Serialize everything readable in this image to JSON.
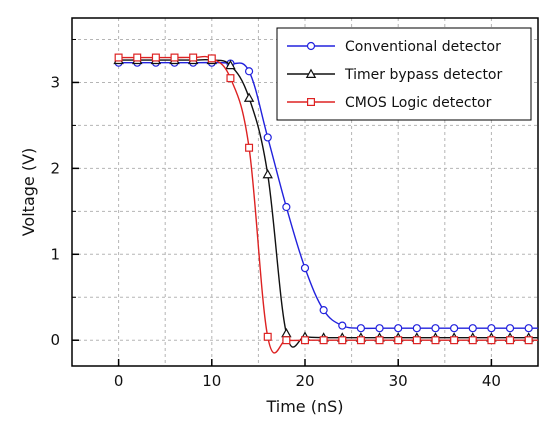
{
  "chart_data": {
    "type": "line",
    "xlabel": "Time (nS)",
    "ylabel": "Voltage (V)",
    "xlim": [
      -5,
      45
    ],
    "ylim": [
      -0.3,
      3.75
    ],
    "xticks": [
      0,
      10,
      20,
      30,
      40
    ],
    "yticks": [
      0,
      1,
      2,
      3
    ],
    "grid": true,
    "legend": "top-right",
    "series": [
      {
        "name": "Conventional detector",
        "color": "#2222dd",
        "marker": "circle",
        "x": [
          0,
          2,
          4,
          6,
          8,
          10,
          12,
          14,
          16,
          18,
          20,
          22,
          24,
          26,
          28,
          30,
          32,
          34,
          36,
          38,
          40,
          42,
          44,
          45
        ],
        "y": [
          3.23,
          3.23,
          3.23,
          3.23,
          3.23,
          3.23,
          3.22,
          3.13,
          2.36,
          1.55,
          0.84,
          0.35,
          0.17,
          0.14,
          0.14,
          0.14,
          0.14,
          0.14,
          0.14,
          0.14,
          0.14,
          0.14,
          0.14,
          0.14
        ]
      },
      {
        "name": "Timer bypass detector",
        "color": "#111111",
        "marker": "triangle",
        "x": [
          0,
          2,
          4,
          6,
          8,
          10,
          12,
          14,
          16,
          18,
          20,
          22,
          24,
          26,
          28,
          30,
          32,
          34,
          36,
          38,
          40,
          42,
          44,
          45
        ],
        "y": [
          3.26,
          3.26,
          3.26,
          3.26,
          3.26,
          3.26,
          3.2,
          2.82,
          1.93,
          0.08,
          0.04,
          0.03,
          0.03,
          0.03,
          0.03,
          0.03,
          0.03,
          0.03,
          0.03,
          0.03,
          0.03,
          0.03,
          0.03,
          0.03
        ]
      },
      {
        "name": "CMOS Logic detector",
        "color": "#dd2222",
        "marker": "square",
        "x": [
          0,
          2,
          4,
          6,
          8,
          10,
          12,
          14,
          16,
          18,
          20,
          22,
          24,
          26,
          28,
          30,
          32,
          34,
          36,
          38,
          40,
          42,
          44,
          45
        ],
        "y": [
          3.29,
          3.29,
          3.29,
          3.29,
          3.29,
          3.28,
          3.05,
          2.24,
          0.04,
          0.0,
          0.0,
          0.0,
          0.0,
          0.0,
          0.0,
          0.0,
          0.0,
          0.0,
          0.0,
          0.0,
          0.0,
          0.0,
          0.0,
          0.0
        ]
      }
    ]
  }
}
